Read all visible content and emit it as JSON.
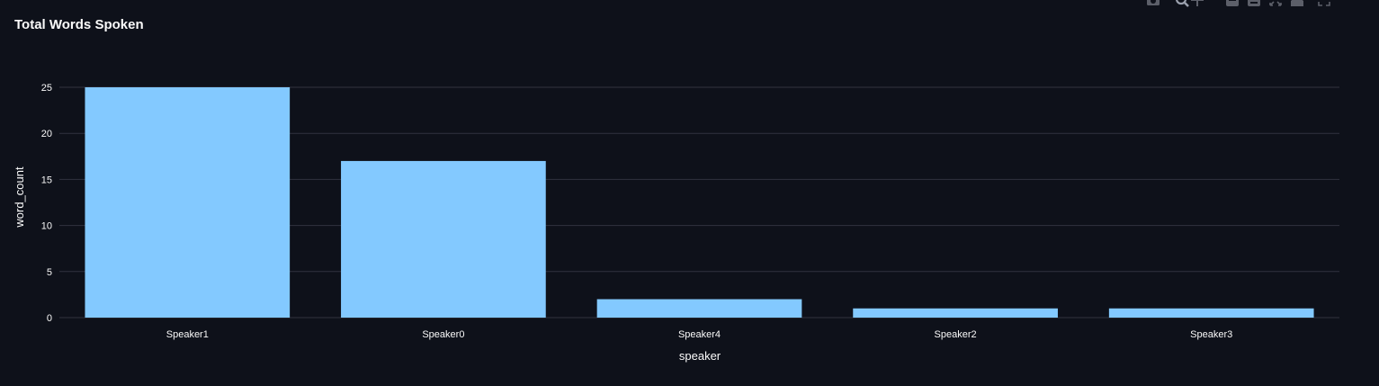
{
  "chart_data": {
    "type": "bar",
    "title": "Total Words Spoken",
    "xlabel": "speaker",
    "ylabel": "word_count",
    "categories": [
      "Speaker1",
      "Speaker0",
      "Speaker4",
      "Speaker2",
      "Speaker3"
    ],
    "values": [
      25,
      17,
      2,
      1,
      1
    ],
    "yticks": [
      0,
      5,
      10,
      15,
      20,
      25
    ],
    "ylim": [
      0,
      25
    ],
    "grid": true,
    "legend": "none",
    "bar_color": "#83c9ff",
    "background_color": "#0e111a",
    "grid_color": "#31333f",
    "text_color": "#fafafa"
  },
  "toolbar": {
    "icons": [
      "camera-icon",
      "zoom-icon",
      "pan-icon",
      "zoom-in-icon",
      "zoom-out-icon",
      "autoscale-icon",
      "home-icon",
      "fullscreen-icon"
    ]
  }
}
